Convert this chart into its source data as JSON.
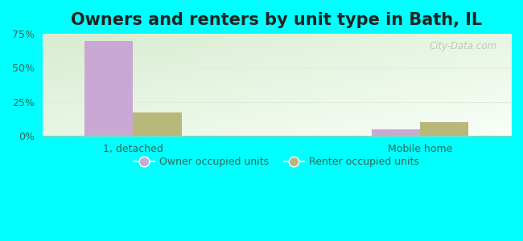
{
  "title": "Owners and renters by unit type in Bath, IL",
  "categories": [
    "1, detached",
    "Mobile home"
  ],
  "owner_values": [
    70.0,
    4.5
  ],
  "renter_values": [
    17.0,
    10.0
  ],
  "owner_color": "#c9a8d4",
  "renter_color": "#b8b87a",
  "ylim": [
    0,
    75
  ],
  "yticks": [
    0,
    25,
    50,
    75
  ],
  "ytick_labels": [
    "0%",
    "25%",
    "50%",
    "75%"
  ],
  "bar_width": 0.32,
  "background_color": "#00FFFF",
  "plot_bg_color_topleft": "#d8ecd0",
  "plot_bg_color_bottomright": "#f8fff8",
  "grid_color": "#e0eed8",
  "legend_labels": [
    "Owner occupied units",
    "Renter occupied units"
  ],
  "watermark": "City-Data.com",
  "title_fontsize": 15,
  "axis_label_fontsize": 9,
  "legend_fontsize": 9,
  "group_positions": [
    0.6,
    2.5
  ],
  "xlim": [
    0.0,
    3.1
  ]
}
